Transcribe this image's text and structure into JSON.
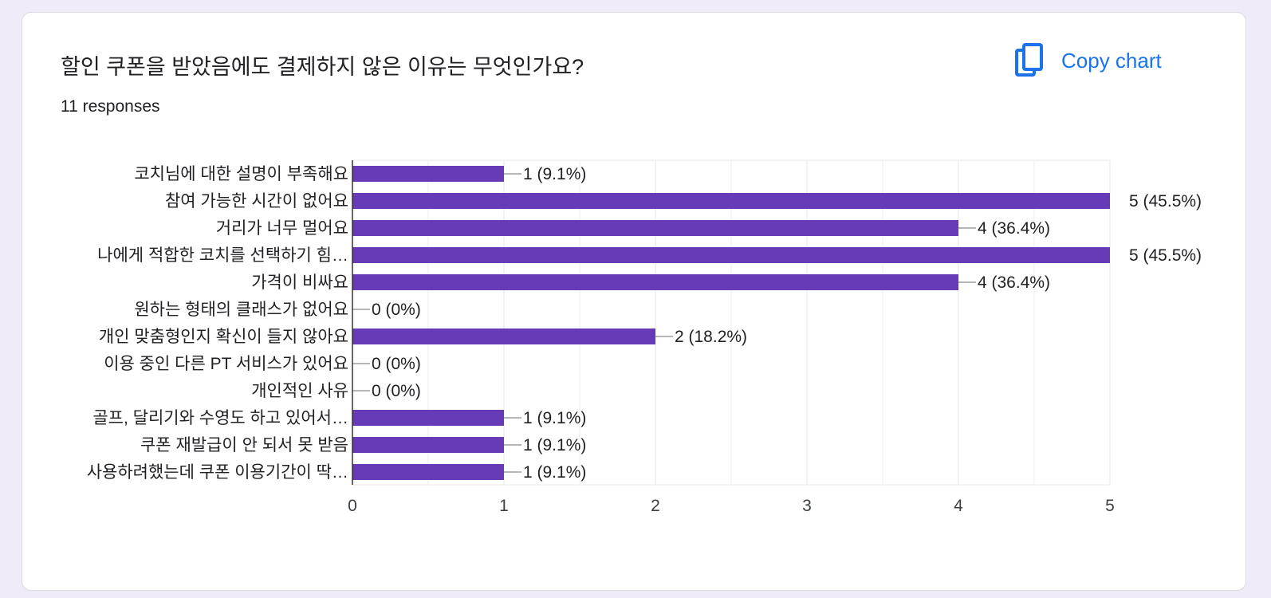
{
  "question": {
    "title": "할인 쿠폰을 받았음에도 결제하지 않은 이유는 무엇인가요?",
    "responses": "11 responses"
  },
  "copy_button": {
    "label": "Copy chart",
    "icon": "copy-icon"
  },
  "colors": {
    "bar": "#673ab7",
    "accent": "#1a73e8",
    "text": "#202124",
    "axis_text": "#3c4043",
    "grid": "#e8e8e8",
    "background": "#f0ebf8"
  },
  "chart_data": {
    "type": "bar",
    "orientation": "horizontal",
    "categories": [
      "코치님에 대한 설명이 부족해요",
      "참여 가능한 시간이 없어요",
      "거리가 너무 멀어요",
      "나에게 적합한 코치를 선택하기 힘…",
      "가격이 비싸요",
      "원하는 형태의 클래스가 없어요",
      "개인 맞춤형인지 확신이 들지 않아요",
      "이용 중인 다른 PT 서비스가 있어요",
      "개인적인 사유",
      "골프, 달리기와 수영도 하고 있어서…",
      "쿠폰 재발급이 안 되서 못 받음",
      "사용하려했는데 쿠폰 이용기간이 딱…"
    ],
    "values": [
      1,
      5,
      4,
      5,
      4,
      0,
      2,
      0,
      0,
      1,
      1,
      1
    ],
    "data_labels": [
      "1 (9.1%)",
      "5 (45.5%)",
      "4 (36.4%)",
      "5 (45.5%)",
      "4 (36.4%)",
      "0 (0%)",
      "2 (18.2%)",
      "0 (0%)",
      "0 (0%)",
      "1 (9.1%)",
      "1 (9.1%)",
      "1 (9.1%)"
    ],
    "xlim": [
      0,
      5
    ],
    "xticks": [
      "0",
      "1",
      "2",
      "3",
      "4",
      "5"
    ],
    "grid": true,
    "legend": "none"
  }
}
